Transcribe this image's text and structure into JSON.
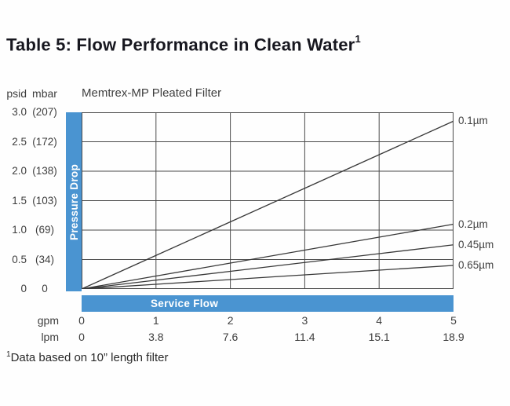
{
  "page": {
    "title": "Table 5: Flow Performance in Clean Water",
    "title_sup": "1",
    "footnote_sup": "1",
    "footnote_text": "Data based on 10” length filter"
  },
  "chart": {
    "subtitle": "Memtrex-MP Pleated Filter",
    "y_unit_primary": "psid",
    "y_unit_secondary": "mbar",
    "pressure_bar_label": "Pressure Drop",
    "flow_bar_label": "Service Flow",
    "x_unit_row1": "gpm",
    "x_unit_row2": "lpm"
  },
  "chart_data": {
    "type": "line",
    "title": "Memtrex-MP Pleated Filter",
    "xlabel": "Service Flow (gpm / lpm)",
    "ylabel": "Pressure Drop (psid / mbar)",
    "xlim": [
      0,
      5
    ],
    "ylim": [
      0,
      3
    ],
    "grid": true,
    "legend_position": "right-outside",
    "x": [
      0,
      1,
      2,
      3,
      4,
      5
    ],
    "x_ticks_gpm": [
      "0",
      "1",
      "2",
      "3",
      "4",
      "5"
    ],
    "x_ticks_lpm": [
      "0",
      "3.8",
      "7.6",
      "11.4",
      "15.1",
      "18.9"
    ],
    "y_ticks_psid": [
      "3.0",
      "2.5",
      "2.0",
      "1.5",
      "1.0",
      "0.5",
      "0"
    ],
    "y_ticks_mbar": [
      "(207)",
      "(172)",
      "(138)",
      "(103)",
      "(69)",
      "(34)",
      "0"
    ],
    "series": [
      {
        "name": "0.1µm",
        "values": [
          0,
          0.57,
          1.14,
          1.71,
          2.28,
          2.85
        ]
      },
      {
        "name": "0.2µm",
        "values": [
          0,
          0.22,
          0.44,
          0.66,
          0.88,
          1.1
        ]
      },
      {
        "name": "0.45µm",
        "values": [
          0,
          0.15,
          0.3,
          0.45,
          0.6,
          0.75
        ]
      },
      {
        "name": "0.65µm",
        "values": [
          0,
          0.08,
          0.16,
          0.24,
          0.32,
          0.4
        ]
      }
    ],
    "colors": {
      "accent_blue": "#4a94d1",
      "line": "#383838",
      "grid": "#4a4a4a"
    }
  }
}
